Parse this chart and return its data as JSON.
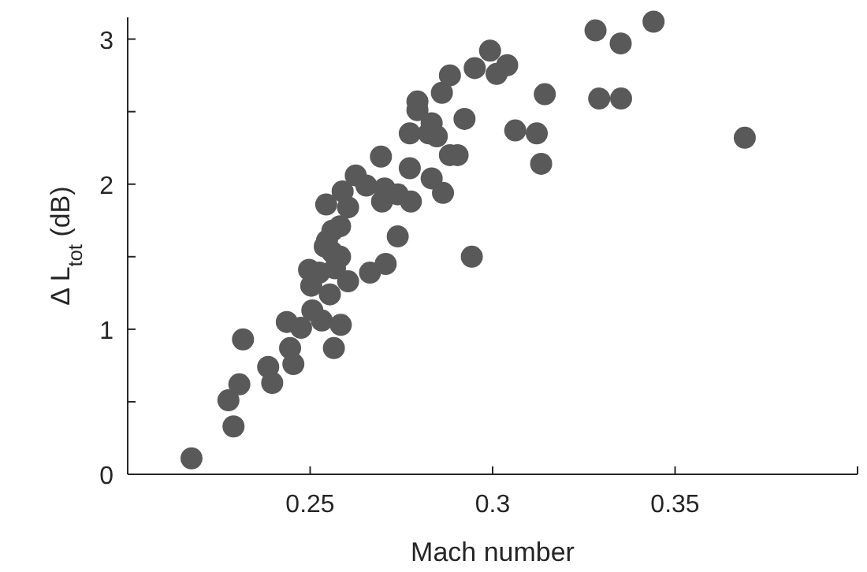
{
  "chart_data": {
    "type": "scatter",
    "xlabel": "Mach number",
    "ylabel": "Δ L$_{tot}$  (dB)",
    "marker": "circle",
    "grid": false,
    "xlim": [
      0.2,
      0.4
    ],
    "xticks": [
      0.25,
      0.3,
      0.35,
      {
        "value": 0.4,
        "label": null
      }
    ],
    "ylim": [
      0,
      3.15
    ],
    "yticks": [
      0,
      {
        "value": 0.5,
        "label": null
      },
      1,
      {
        "value": 1.5,
        "label": null
      },
      2,
      {
        "value": 2.5,
        "label": null
      },
      3
    ],
    "series": [
      {
        "color": "#595959",
        "x": [
          0.2175,
          0.229,
          0.2276,
          0.2306,
          0.2316,
          0.2385,
          0.2396,
          0.2445,
          0.2454,
          0.2436,
          0.2475,
          0.2506,
          0.2532,
          0.2565,
          0.2584,
          0.2503,
          0.2497,
          0.2554,
          0.2604,
          0.2664,
          0.2707,
          0.2561,
          0.2546,
          0.274,
          0.2943,
          0.2568,
          0.2525,
          0.2582,
          0.254,
          0.2561,
          0.2582,
          0.2544,
          0.2604,
          0.2589,
          0.2625,
          0.2654,
          0.2697,
          0.2704,
          0.274,
          0.2776,
          0.2694,
          0.2773,
          0.2833,
          0.2864,
          0.2883,
          0.2904,
          0.2773,
          0.2825,
          0.2847,
          0.2833,
          0.2923,
          0.2794,
          0.2794,
          0.2861,
          0.2883,
          0.2951,
          0.2993,
          0.3011,
          0.304,
          0.3143,
          0.3062,
          0.3121,
          0.3133,
          0.3282,
          0.3351,
          0.3441,
          0.3292,
          0.3352,
          0.3691
        ],
        "values": [
          0.11,
          0.33,
          0.51,
          0.62,
          0.93,
          0.74,
          0.63,
          0.87,
          0.76,
          1.05,
          1.01,
          1.13,
          1.06,
          0.87,
          1.03,
          1.3,
          1.41,
          1.24,
          1.33,
          1.39,
          1.45,
          1.53,
          1.61,
          1.64,
          1.5,
          1.42,
          1.39,
          1.5,
          1.57,
          1.68,
          1.71,
          1.86,
          1.84,
          1.95,
          2.06,
          1.99,
          1.88,
          1.97,
          1.93,
          1.88,
          2.19,
          2.11,
          2.04,
          1.94,
          2.2,
          2.2,
          2.35,
          2.35,
          2.33,
          2.42,
          2.45,
          2.57,
          2.51,
          2.63,
          2.75,
          2.8,
          2.92,
          2.76,
          2.82,
          2.62,
          2.37,
          2.35,
          2.14,
          3.06,
          2.97,
          3.12,
          2.59,
          2.59,
          2.32
        ]
      }
    ]
  }
}
